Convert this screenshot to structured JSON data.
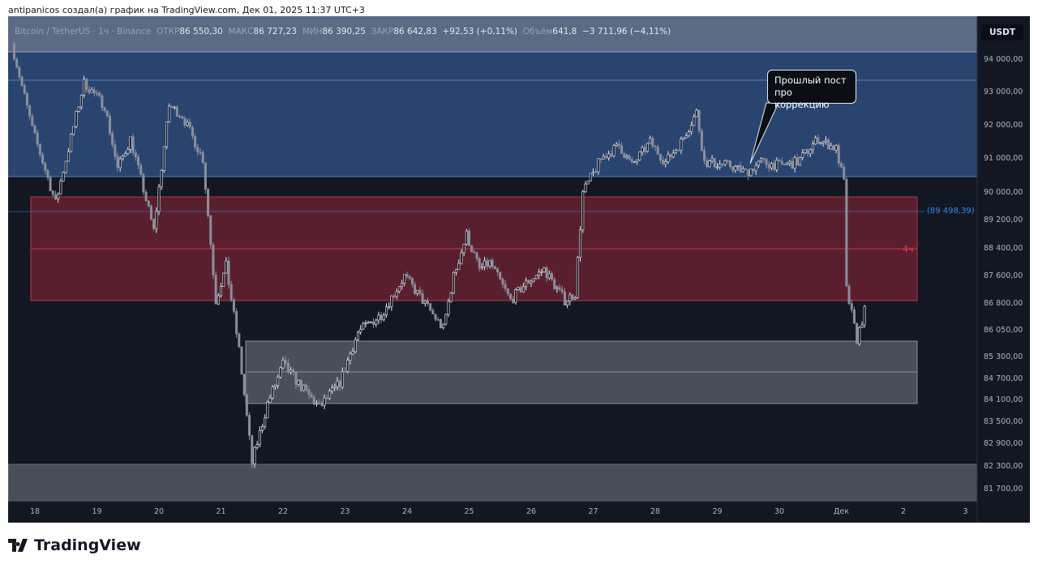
{
  "credit": "antipanicos создал(а) график на TradingView.com, Дек 01, 2025 11:37 UTC+3",
  "legend": {
    "symbol": "Bitcoin / TetherUS · 1ч · Binance",
    "open_label": "ОТКР",
    "open": "86 550,30",
    "high_label": "МАКС",
    "high": "86 727,23",
    "low_label": "МИН",
    "low": "86 390,25",
    "close_label": "ЗАКР",
    "close": "86 642,83",
    "change": "+92,53 (+0,11%)",
    "volume_label": "Объём",
    "volume": "641,8",
    "volume_change": "−3 711,96 (−4,11%)"
  },
  "currency": "USDT",
  "annotations": {
    "level_label": "(89 498,39)",
    "timeframe_label": "4ч",
    "callout": "Прошлый пост про коррекцию"
  },
  "logo": "TradingView",
  "colors": {
    "background": "#131722",
    "up": "#e6e9ef",
    "down": "#8a8f9c",
    "supply_zone": "#2a4470",
    "red_zone": "#5a1f2e",
    "gray_zone": "#4a4e58",
    "level": "#2f8ef0"
  },
  "chart_data": {
    "type": "candlestick",
    "symbol": "BTCUSDT",
    "interval": "1h",
    "y_ticks": [
      "94 000,00",
      "93 000,00",
      "92 000,00",
      "91 000,00",
      "90 000,00",
      "89 200,00",
      "88 400,00",
      "87 600,00",
      "86 800,00",
      "86 050,00",
      "85 300,00",
      "84 700,00",
      "84 100,00",
      "83 500,00",
      "82 900,00",
      "82 300,00",
      "81 700,00"
    ],
    "x_ticks": [
      "18",
      "19",
      "20",
      "21",
      "22",
      "23",
      "24",
      "25",
      "26",
      "27",
      "28",
      "29",
      "30",
      "Дек",
      "2",
      "3"
    ],
    "price_line": 89498.39,
    "approx_price_path": [
      [
        "2025-11-17 15:00",
        94500
      ],
      [
        "2025-11-17 23:00",
        91900
      ],
      [
        "2025-11-18 08:00",
        89700
      ],
      [
        "2025-11-18 13:00",
        91300
      ],
      [
        "2025-11-18 19:00",
        93300
      ],
      [
        "2025-11-19 03:00",
        92600
      ],
      [
        "2025-11-19 08:00",
        90700
      ],
      [
        "2025-11-19 13:00",
        91600
      ],
      [
        "2025-11-19 17:00",
        90400
      ],
      [
        "2025-11-19 22:00",
        88900
      ],
      [
        "2025-11-20 04:00",
        92600
      ],
      [
        "2025-11-20 09:00",
        92300
      ],
      [
        "2025-11-20 17:00",
        91000
      ],
      [
        "2025-11-20 22:00",
        86900
      ],
      [
        "2025-11-21 02:00",
        87900
      ],
      [
        "2025-11-21 07:00",
        85500
      ],
      [
        "2025-11-21 12:00",
        82400
      ],
      [
        "2025-11-21 18:00",
        84000
      ],
      [
        "2025-11-22 00:00",
        85100
      ],
      [
        "2025-11-22 08:00",
        84400
      ],
      [
        "2025-11-22 14:00",
        83900
      ],
      [
        "2025-11-22 22:00",
        84600
      ],
      [
        "2025-11-23 05:00",
        86000
      ],
      [
        "2025-11-23 14:00",
        86500
      ],
      [
        "2025-11-23 23:00",
        87600
      ],
      [
        "2025-11-24 06:00",
        86900
      ],
      [
        "2025-11-24 14:00",
        86100
      ],
      [
        "2025-11-24 18:00",
        87600
      ],
      [
        "2025-11-24 23:00",
        88800
      ],
      [
        "2025-11-25 04:00",
        87800
      ],
      [
        "2025-11-25 08:00",
        88000
      ],
      [
        "2025-11-25 16:00",
        86900
      ],
      [
        "2025-11-25 22:00",
        87400
      ],
      [
        "2025-11-26 05:00",
        87800
      ],
      [
        "2025-11-26 13:00",
        86900
      ],
      [
        "2025-11-26 17:00",
        87100
      ],
      [
        "2025-11-26 20:00",
        90000
      ],
      [
        "2025-11-27 03:00",
        91000
      ],
      [
        "2025-11-27 10:00",
        91400
      ],
      [
        "2025-11-27 15:00",
        90800
      ],
      [
        "2025-11-27 22:00",
        91500
      ],
      [
        "2025-11-28 04:00",
        90900
      ],
      [
        "2025-11-28 10:00",
        91500
      ],
      [
        "2025-11-28 16:00",
        92400
      ],
      [
        "2025-11-28 19:00",
        90900
      ],
      [
        "2025-11-29 05:00",
        90800
      ],
      [
        "2025-11-29 11:00",
        90600
      ],
      [
        "2025-11-29 17:00",
        90900
      ],
      [
        "2025-11-30 00:00",
        90800
      ],
      [
        "2025-11-30 07:00",
        90900
      ],
      [
        "2025-11-30 15:00",
        91600
      ],
      [
        "2025-11-30 22:00",
        91300
      ],
      [
        "2025-12-01 01:00",
        90300
      ],
      [
        "2025-12-01 02:00",
        87200
      ],
      [
        "2025-12-01 06:00",
        85800
      ],
      [
        "2025-12-01 09:00",
        86600
      ]
    ]
  }
}
